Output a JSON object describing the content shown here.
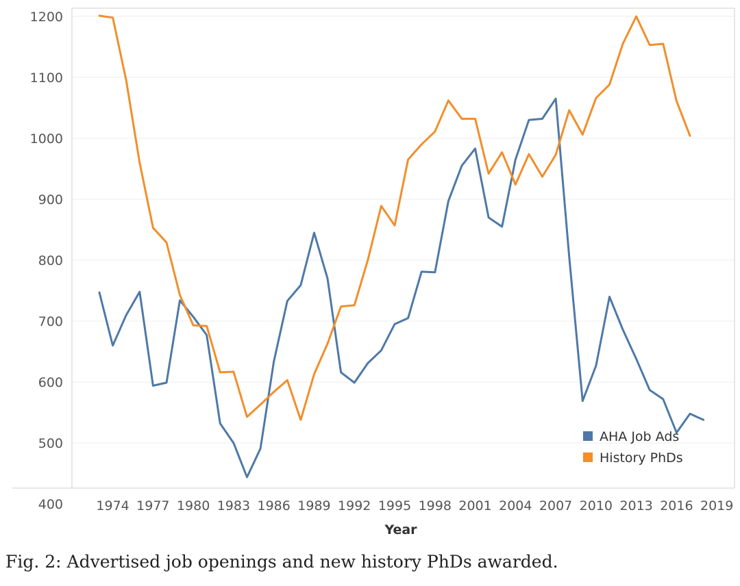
{
  "caption": "Fig. 2: Advertised job openings and new history PhDs awarded.",
  "chart_data": {
    "type": "line",
    "title": "",
    "xlabel": "Year",
    "ylabel": "",
    "xlim": [
      1971,
      2020
    ],
    "ylim": [
      395,
      1215
    ],
    "x_ticks": [
      1974,
      1977,
      1980,
      1983,
      1986,
      1989,
      1992,
      1995,
      1998,
      2001,
      2004,
      2007,
      2010,
      2013,
      2016,
      2019
    ],
    "y_ticks": [
      400,
      500,
      600,
      700,
      800,
      900,
      1000,
      1100,
      1200
    ],
    "grid": "horizontal",
    "legend_position": "bottom-right",
    "series": [
      {
        "name": "AHA Job Ads",
        "color": "#4e79a7",
        "x": [
          1973,
          1974,
          1975,
          1976,
          1977,
          1978,
          1979,
          1980,
          1981,
          1982,
          1983,
          1984,
          1985,
          1986,
          1987,
          1988,
          1989,
          1990,
          1991,
          1992,
          1993,
          1994,
          1995,
          1996,
          1997,
          1998,
          1999,
          2000,
          2001,
          2002,
          2003,
          2004,
          2005,
          2006,
          2007,
          2008,
          2009,
          2010,
          2011,
          2012,
          2013,
          2014,
          2015,
          2016,
          2017,
          2018
        ],
        "values": [
          747,
          660,
          710,
          748,
          594,
          599,
          734,
          707,
          677,
          532,
          500,
          444,
          491,
          634,
          733,
          759,
          845,
          770,
          616,
          599,
          631,
          652,
          695,
          705,
          781,
          780,
          897,
          955,
          983,
          870,
          855,
          965,
          1030,
          1032,
          1065,
          806,
          569,
          627,
          740,
          686,
          638,
          587,
          572,
          517,
          548,
          538
        ]
      },
      {
        "name": "History PhDs",
        "color": "#f28e2b",
        "x": [
          1973,
          1974,
          1975,
          1976,
          1977,
          1978,
          1979,
          1980,
          1981,
          1982,
          1983,
          1984,
          1985,
          1986,
          1987,
          1988,
          1989,
          1990,
          1991,
          1992,
          1993,
          1994,
          1995,
          1996,
          1997,
          1998,
          1999,
          2000,
          2001,
          2002,
          2003,
          2004,
          2005,
          2006,
          2007,
          2008,
          2009,
          2010,
          2011,
          2012,
          2013,
          2014,
          2015,
          2016,
          2017
        ],
        "values": [
          1201,
          1198,
          1095,
          960,
          853,
          829,
          743,
          693,
          692,
          616,
          617,
          543,
          563,
          584,
          603,
          538,
          613,
          663,
          724,
          726,
          800,
          889,
          857,
          965,
          990,
          1011,
          1062,
          1032,
          1032,
          942,
          977,
          924,
          974,
          937,
          973,
          1046,
          1006,
          1066,
          1088,
          1155,
          1200,
          1153,
          1155,
          1061,
          1004
        ]
      }
    ]
  }
}
